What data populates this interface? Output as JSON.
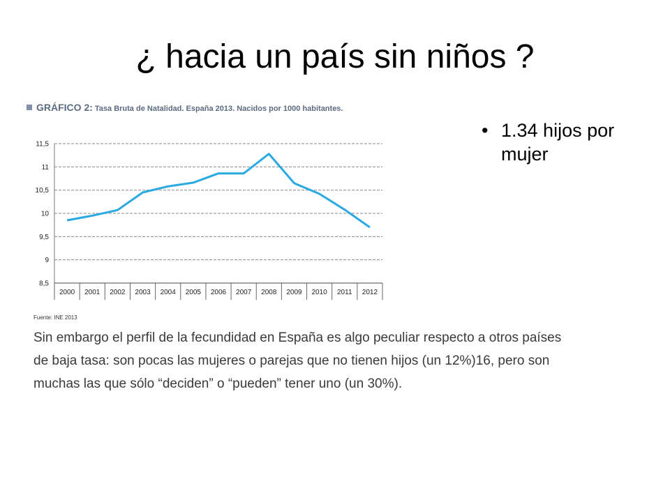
{
  "title": "¿ hacia un país sin niños ?",
  "bullets": [
    "1.34 hijos por mujer"
  ],
  "figure": {
    "label": "GRÁFICO 2:",
    "description": "Tasa Bruta de Natalidad. España 2013. Nacidos por 1000 habitantes.",
    "source": "Fuente: INE 2013",
    "paragraph": "Sin embargo el perfil de la fecundidad en España es algo peculiar respecto a otros países de baja tasa: son pocas las mujeres o parejas que no tienen hijos (un 12%)16, pero son muchas las que sólo “deciden” o “pueden” tener uno (un 30%)."
  },
  "colors": {
    "line": "#29a9e1",
    "grid": "#8a8a8a",
    "header": "#5b6b80"
  },
  "chart_data": {
    "type": "line",
    "title": "Tasa Bruta de Natalidad. España 2013. Nacidos por 1000 habitantes.",
    "xlabel": "",
    "ylabel": "",
    "categories": [
      "2000",
      "2001",
      "2002",
      "2003",
      "2004",
      "2005",
      "2006",
      "2007",
      "2008",
      "2009",
      "2010",
      "2011",
      "2012"
    ],
    "series": [
      {
        "values": [
          9.85,
          9.95,
          10.07,
          10.45,
          10.58,
          10.66,
          10.86,
          10.86,
          11.28,
          10.65,
          10.42,
          10.08,
          9.7
        ]
      }
    ],
    "ylim": [
      8.5,
      11.5
    ],
    "yticks": [
      8.5,
      9,
      9.5,
      10,
      10.5,
      11,
      11.5
    ],
    "ytick_labels": [
      "8,5",
      "9",
      "9,5",
      "10",
      "10,5",
      "11",
      "11,5"
    ],
    "grid": true,
    "legend": "none"
  }
}
